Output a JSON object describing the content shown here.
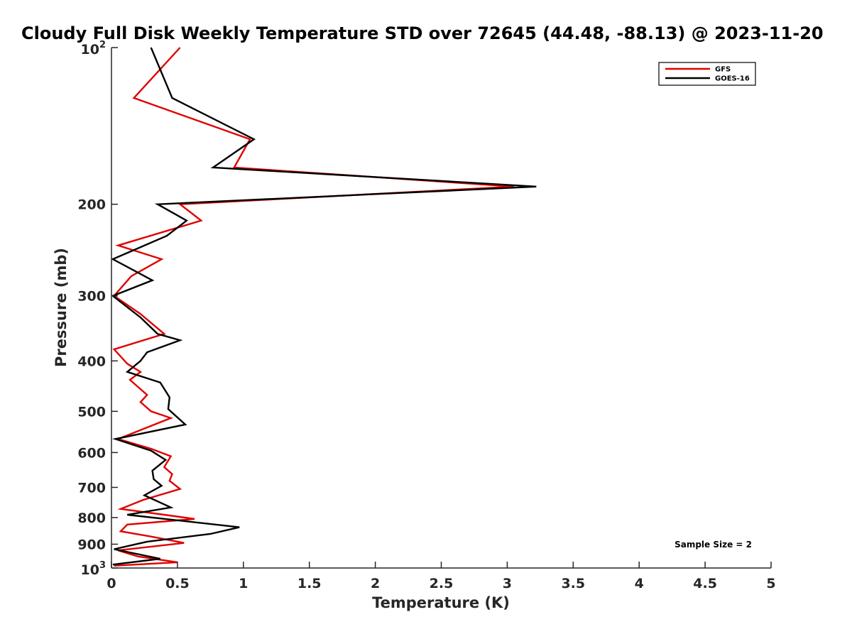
{
  "chart_data": {
    "type": "line",
    "title": "Cloudy Full Disk Weekly Temperature STD over 72645 (44.48, -88.13) @ 2023-11-20",
    "xlabel": "Temperature (K)",
    "ylabel": "Pressure (mb)",
    "xlim": [
      0,
      5
    ],
    "ylim": [
      100,
      1000
    ],
    "y_scale": "log",
    "y_reversed": true,
    "x_ticks": [
      0,
      0.5,
      1,
      1.5,
      2,
      2.5,
      3,
      3.5,
      4,
      4.5,
      5
    ],
    "x_tick_labels": [
      "0",
      "0.5",
      "1",
      "1.5",
      "2",
      "2.5",
      "3",
      "3.5",
      "4",
      "4.5",
      "5"
    ],
    "y_ticks": [
      {
        "value": 100,
        "base": "10",
        "exp": "2"
      },
      {
        "value": 200,
        "label": "200"
      },
      {
        "value": 300,
        "label": "300"
      },
      {
        "value": 400,
        "label": "400"
      },
      {
        "value": 500,
        "label": "500"
      },
      {
        "value": 600,
        "label": "600"
      },
      {
        "value": 700,
        "label": "700"
      },
      {
        "value": 800,
        "label": "800"
      },
      {
        "value": 900,
        "label": "900"
      },
      {
        "value": 1000,
        "base": "10",
        "exp": "3"
      }
    ],
    "grid": false,
    "legend_position": "top-right",
    "series": [
      {
        "name": "GFS",
        "color": "#e00000",
        "points": [
          [
            0.52,
            100
          ],
          [
            0.17,
            125
          ],
          [
            1.05,
            150
          ],
          [
            0.93,
            170
          ],
          [
            3.05,
            185
          ],
          [
            0.52,
            200
          ],
          [
            0.68,
            215
          ],
          [
            0.05,
            240
          ],
          [
            0.38,
            255
          ],
          [
            0.15,
            275
          ],
          [
            0.02,
            300
          ],
          [
            0.22,
            325
          ],
          [
            0.4,
            355
          ],
          [
            0.02,
            380
          ],
          [
            0.12,
            405
          ],
          [
            0.22,
            420
          ],
          [
            0.14,
            435
          ],
          [
            0.27,
            465
          ],
          [
            0.22,
            480
          ],
          [
            0.3,
            500
          ],
          [
            0.45,
            515
          ],
          [
            0.05,
            565
          ],
          [
            0.3,
            590
          ],
          [
            0.45,
            610
          ],
          [
            0.4,
            640
          ],
          [
            0.46,
            660
          ],
          [
            0.44,
            680
          ],
          [
            0.52,
            705
          ],
          [
            0.24,
            740
          ],
          [
            0.07,
            770
          ],
          [
            0.4,
            790
          ],
          [
            0.63,
            805
          ],
          [
            0.12,
            825
          ],
          [
            0.07,
            850
          ],
          [
            0.3,
            870
          ],
          [
            0.55,
            895
          ],
          [
            0.05,
            925
          ],
          [
            0.2,
            950
          ],
          [
            0.5,
            975
          ],
          [
            0.02,
            990
          ]
        ]
      },
      {
        "name": "GOES-16",
        "color": "#000000",
        "points": [
          [
            0.3,
            100
          ],
          [
            0.46,
            125
          ],
          [
            1.08,
            150
          ],
          [
            0.77,
            170
          ],
          [
            3.22,
            185
          ],
          [
            0.35,
            200
          ],
          [
            0.57,
            215
          ],
          [
            0.42,
            230
          ],
          [
            0.01,
            255
          ],
          [
            0.31,
            280
          ],
          [
            0.01,
            300
          ],
          [
            0.22,
            330
          ],
          [
            0.35,
            355
          ],
          [
            0.52,
            365
          ],
          [
            0.27,
            385
          ],
          [
            0.22,
            400
          ],
          [
            0.12,
            420
          ],
          [
            0.37,
            440
          ],
          [
            0.44,
            470
          ],
          [
            0.43,
            495
          ],
          [
            0.56,
            530
          ],
          [
            0.03,
            565
          ],
          [
            0.3,
            595
          ],
          [
            0.41,
            620
          ],
          [
            0.31,
            650
          ],
          [
            0.32,
            675
          ],
          [
            0.38,
            695
          ],
          [
            0.25,
            725
          ],
          [
            0.45,
            765
          ],
          [
            0.12,
            790
          ],
          [
            0.97,
            835
          ],
          [
            0.75,
            860
          ],
          [
            0.27,
            890
          ],
          [
            0.02,
            920
          ],
          [
            0.37,
            960
          ],
          [
            0.01,
            985
          ]
        ]
      }
    ],
    "annotations": [
      {
        "text": "Sample Size = 2",
        "position": "bottom-right"
      }
    ]
  }
}
